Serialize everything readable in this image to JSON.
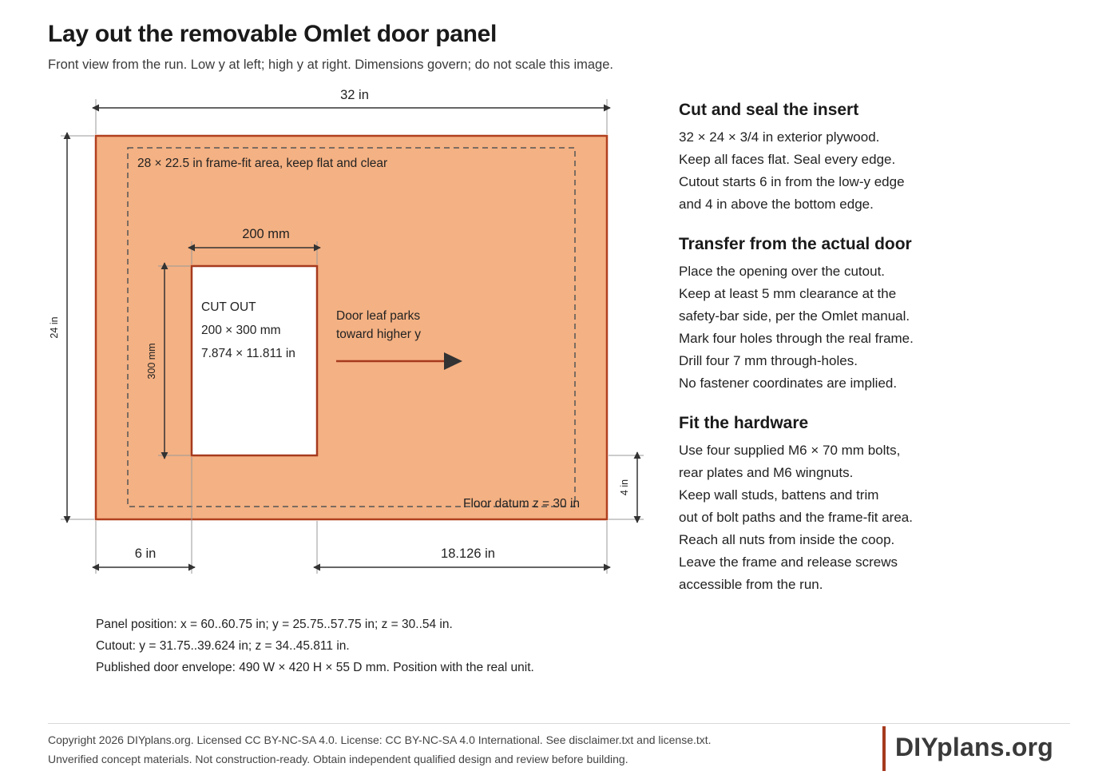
{
  "page": {
    "title": "Lay out the removable Omlet door panel",
    "subtitle": "Front view from the run. Low y at left; high y at right. Dimensions govern; do not scale this image."
  },
  "diagram": {
    "panel_width_label": "32 in",
    "panel_height_label": "24 in",
    "frame_fit_label": "28 × 22.5 in frame-fit area, keep flat and clear",
    "cutout_width_label": "200 mm",
    "cutout_height_label": "300 mm",
    "cutout_lines": [
      "CUT OUT",
      "200 × 300 mm",
      "7.874 × 11.811 in"
    ],
    "door_leaf_lines": [
      "Door leaf parks",
      "toward higher y"
    ],
    "floor_datum_label": "Floor datum z = 30 in",
    "cutout_offset_label": "6 in",
    "cutout_right_label": "18.126 in",
    "bottom_offset_label": "4 in",
    "colors": {
      "panel_fill": "#f4b183",
      "panel_stroke": "#b0401f",
      "cutout_stroke": "#a63a1e",
      "dim_line": "#333333"
    }
  },
  "notes": [
    "Panel position: x = 60..60.75 in; y = 25.75..57.75 in; z = 30..54 in.",
    "Cutout: y = 31.75..39.624 in; z = 34..45.811 in.",
    "Published door envelope: 490 W × 420 H × 55 D mm. Position with the real unit."
  ],
  "steps": [
    {
      "heading": "Cut and seal the insert",
      "lines": [
        "32 × 24 × 3/4 in exterior plywood.",
        "Keep all faces flat. Seal every edge.",
        "Cutout starts 6 in from the low-y edge",
        "and 4 in above the bottom edge."
      ]
    },
    {
      "heading": "Transfer from the actual door",
      "lines": [
        "Place the opening over the cutout.",
        "Keep at least 5 mm clearance at the",
        "safety-bar side, per the Omlet manual.",
        "Mark four holes through the real frame.",
        "Drill four 7 mm through-holes.",
        "No fastener coordinates are implied."
      ]
    },
    {
      "heading": "Fit the hardware",
      "lines": [
        "Use four supplied M6 × 70 mm bolts,",
        "rear plates and M6 wingnuts.",
        "Keep wall studs, battens and trim",
        "out of bolt paths and the frame-fit area.",
        "Reach all nuts from inside the coop.",
        "Leave the frame and release screws",
        "accessible from the run."
      ]
    }
  ],
  "footer": {
    "line1": "Copyright 2026 DIYplans.org. Licensed CC BY-NC-SA 4.0. License: CC BY-NC-SA 4.0 International. See disclaimer.txt and license.txt.",
    "line2": "Unverified concept materials. Not construction-ready. Obtain independent qualified design and review before building.",
    "brand": "DIYplans.org"
  }
}
